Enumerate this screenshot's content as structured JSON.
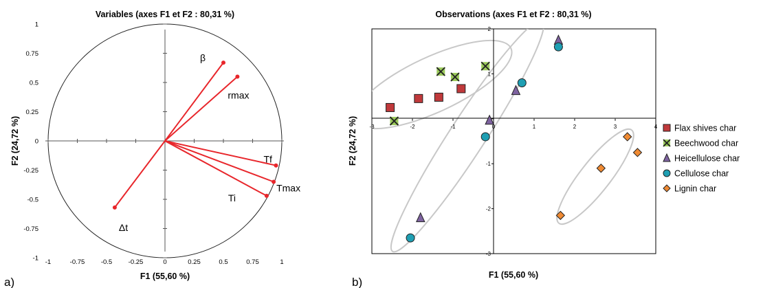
{
  "chart_data": [
    {
      "type": "scatter",
      "subtype": "correlation-circle",
      "panel_label": "a)",
      "title": "Variables (axes F1 et F2 : 80,31 %)",
      "xlabel": "F1 (55,60 %)",
      "ylabel": "F2 (24,72 %)",
      "xlim": [
        -1,
        1
      ],
      "ylim": [
        -1,
        1
      ],
      "xticks": [
        "-1",
        "-0.75",
        "-0.5",
        "-0.25",
        "0",
        "0.25",
        "0.5",
        "0.75",
        "1"
      ],
      "yticks": [
        "1",
        "0.75",
        "0.5",
        "0.25",
        "0",
        "-0.25",
        "-0.5",
        "-0.75",
        "-1"
      ],
      "grid": false,
      "unit_circle": true,
      "vector_color": "#e8262b",
      "vectors": [
        {
          "label": "β",
          "x": 0.5,
          "y": 0.67
        },
        {
          "label": "rmax",
          "x": 0.62,
          "y": 0.55
        },
        {
          "label": "Tf",
          "x": 0.95,
          "y": -0.21
        },
        {
          "label": "Tmax",
          "x": 0.93,
          "y": -0.35
        },
        {
          "label": "Ti",
          "x": 0.87,
          "y": -0.47
        },
        {
          "label": "Δt",
          "x": -0.43,
          "y": -0.57
        }
      ]
    },
    {
      "type": "scatter",
      "panel_label": "b)",
      "title": "Observations (axes F1 et F2 : 80,31 %)",
      "xlabel": "F1 (55,60 %)",
      "ylabel": "F2 (24,72 %)",
      "xlim": [
        -3,
        4
      ],
      "ylim": [
        -3,
        2
      ],
      "xticks": [
        "-3",
        "-2",
        "-1",
        "0",
        "1",
        "2",
        "3",
        "4"
      ],
      "yticks": [
        "2",
        "1",
        "0",
        "-1",
        "-2",
        "-3"
      ],
      "grid": false,
      "legend_position": "right",
      "series": [
        {
          "name": "Flax shives char",
          "marker": "square",
          "color": "#c0393b",
          "points": [
            [
              -2.55,
              0.25
            ],
            [
              -1.85,
              0.45
            ],
            [
              -1.35,
              0.48
            ],
            [
              -0.8,
              0.67
            ]
          ]
        },
        {
          "name": "Beechwood char",
          "marker": "x-square",
          "color": "#9bc95b",
          "points": [
            [
              -2.45,
              -0.05
            ],
            [
              -1.3,
              1.05
            ],
            [
              -0.95,
              0.93
            ],
            [
              -0.2,
              1.17
            ]
          ]
        },
        {
          "name": "Heicellulose char",
          "marker": "triangle",
          "color": "#7e63a0",
          "points": [
            [
              1.6,
              1.75
            ],
            [
              0.55,
              0.63
            ],
            [
              -0.1,
              -0.03
            ],
            [
              -1.8,
              -2.2
            ]
          ]
        },
        {
          "name": "Cellulose char",
          "marker": "circle",
          "color": "#1f9fb3",
          "points": [
            [
              1.6,
              1.6
            ],
            [
              0.7,
              0.8
            ],
            [
              -0.2,
              -0.4
            ],
            [
              -2.05,
              -2.65
            ]
          ]
        },
        {
          "name": "Lignin char",
          "marker": "diamond",
          "color": "#ef8a33",
          "points": [
            [
              3.3,
              -0.4
            ],
            [
              3.55,
              -0.75
            ],
            [
              2.65,
              -1.1
            ],
            [
              1.65,
              -2.15
            ]
          ]
        }
      ]
    }
  ]
}
